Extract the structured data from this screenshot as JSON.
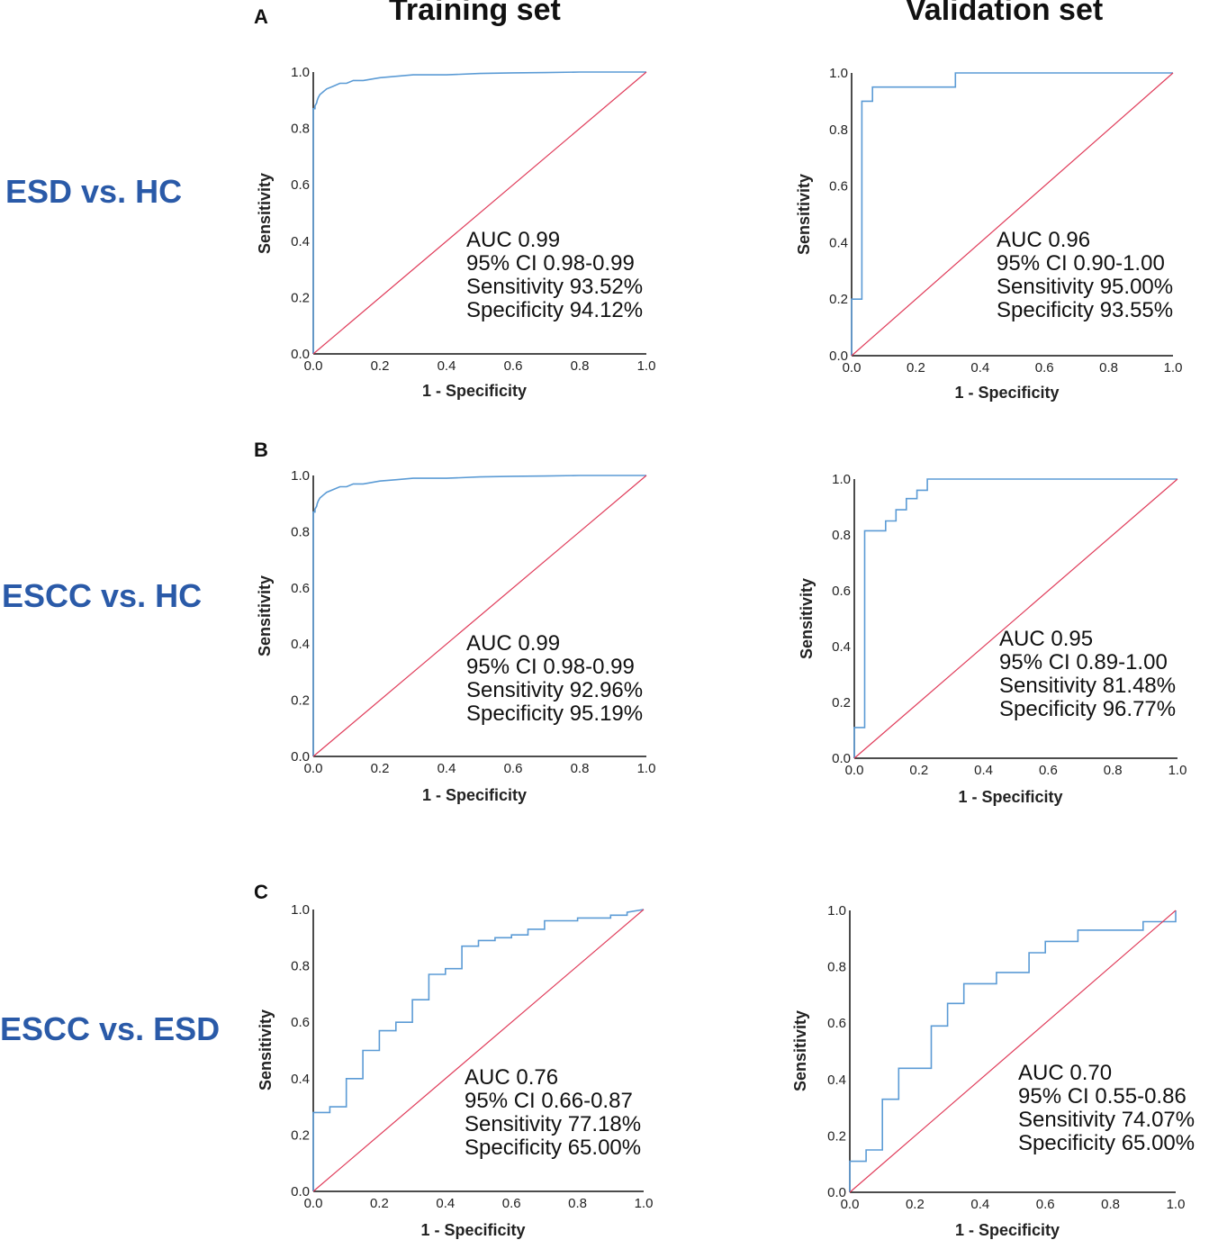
{
  "columns": {
    "left": "Training set",
    "right": "Validation set"
  },
  "rows": [
    {
      "letter": "A",
      "label": "ESD vs. HC"
    },
    {
      "letter": "B",
      "label": "ESCC vs. HC"
    },
    {
      "letter": "C",
      "label": "ESCC vs. ESD"
    }
  ],
  "colors": {
    "roc": "#5b9bd5",
    "reference": "#e03c5a",
    "label": "#2a5aa8"
  },
  "chart_data": [
    {
      "id": "A-train",
      "type": "line",
      "title": "Training set",
      "xlabel": "1 - Specificity",
      "ylabel": "Sensitivity",
      "xlim": [
        0,
        1
      ],
      "ylim": [
        0,
        1
      ],
      "ticks": [
        "0.0",
        "0.2",
        "0.4",
        "0.6",
        "0.8",
        "1.0"
      ],
      "series": [
        {
          "name": "ROC",
          "x": [
            0,
            0,
            0.005,
            0.005,
            0.01,
            0.012,
            0.015,
            0.02,
            0.03,
            0.04,
            0.06,
            0.08,
            0.1,
            0.12,
            0.15,
            0.2,
            0.25,
            0.3,
            0.4,
            0.5,
            0.6,
            0.7,
            0.8,
            1.0
          ],
          "y": [
            0,
            0.87,
            0.87,
            0.88,
            0.89,
            0.9,
            0.91,
            0.92,
            0.93,
            0.94,
            0.95,
            0.96,
            0.96,
            0.97,
            0.97,
            0.98,
            0.985,
            0.99,
            0.99,
            0.995,
            0.997,
            0.998,
            1.0,
            1.0
          ]
        },
        {
          "name": "Reference",
          "x": [
            0,
            1
          ],
          "y": [
            0,
            1
          ]
        }
      ],
      "stats": {
        "auc": "AUC 0.99",
        "ci": "95% CI 0.98-0.99",
        "sensitivity": "Sensitivity 93.52%",
        "specificity": "Specificity 94.12%"
      }
    },
    {
      "id": "A-val",
      "type": "line",
      "title": "Validation set",
      "xlabel": "1 - Specificity",
      "ylabel": "Sensitivity",
      "xlim": [
        0,
        1
      ],
      "ylim": [
        0,
        1
      ],
      "ticks": [
        "0.0",
        "0.2",
        "0.4",
        "0.6",
        "0.8",
        "1.0"
      ],
      "series": [
        {
          "name": "ROC",
          "x": [
            0,
            0,
            0.032,
            0.032,
            0.065,
            0.065,
            0.323,
            0.323,
            1.0
          ],
          "y": [
            0,
            0.2,
            0.2,
            0.9,
            0.9,
            0.95,
            0.95,
            1.0,
            1.0
          ]
        },
        {
          "name": "Reference",
          "x": [
            0,
            1
          ],
          "y": [
            0,
            1
          ]
        }
      ],
      "stats": {
        "auc": "AUC 0.96",
        "ci": "95% CI 0.90-1.00",
        "sensitivity": "Sensitivity 95.00%",
        "specificity": "Specificity 93.55%"
      }
    },
    {
      "id": "B-train",
      "type": "line",
      "title": "Training set",
      "xlabel": "1 - Specificity",
      "ylabel": "Sensitivity",
      "xlim": [
        0,
        1
      ],
      "ylim": [
        0,
        1
      ],
      "ticks": [
        "0.0",
        "0.2",
        "0.4",
        "0.6",
        "0.8",
        "1.0"
      ],
      "series": [
        {
          "name": "ROC",
          "x": [
            0,
            0,
            0.005,
            0.005,
            0.01,
            0.012,
            0.015,
            0.02,
            0.03,
            0.04,
            0.06,
            0.08,
            0.1,
            0.12,
            0.15,
            0.2,
            0.25,
            0.3,
            0.4,
            0.5,
            0.6,
            0.7,
            0.8,
            1.0
          ],
          "y": [
            0,
            0.87,
            0.87,
            0.88,
            0.89,
            0.9,
            0.91,
            0.92,
            0.93,
            0.94,
            0.95,
            0.96,
            0.96,
            0.97,
            0.97,
            0.98,
            0.985,
            0.99,
            0.99,
            0.995,
            0.997,
            0.998,
            1.0,
            1.0
          ]
        },
        {
          "name": "Reference",
          "x": [
            0,
            1
          ],
          "y": [
            0,
            1
          ]
        }
      ],
      "stats": {
        "auc": "AUC 0.99",
        "ci": "95% CI 0.98-0.99",
        "sensitivity": "Sensitivity 92.96%",
        "specificity": "Specificity 95.19%"
      }
    },
    {
      "id": "B-val",
      "type": "line",
      "title": "Validation set",
      "xlabel": "1 - Specificity",
      "ylabel": "Sensitivity",
      "xlim": [
        0,
        1
      ],
      "ylim": [
        0,
        1
      ],
      "ticks": [
        "0.0",
        "0.2",
        "0.4",
        "0.6",
        "0.8",
        "1.0"
      ],
      "series": [
        {
          "name": "ROC",
          "x": [
            0,
            0,
            0.032,
            0.032,
            0.097,
            0.097,
            0.129,
            0.129,
            0.161,
            0.161,
            0.194,
            0.194,
            0.226,
            0.226,
            1.0
          ],
          "y": [
            0,
            0.11,
            0.11,
            0.815,
            0.815,
            0.85,
            0.85,
            0.89,
            0.89,
            0.93,
            0.93,
            0.96,
            0.96,
            1.0,
            1.0
          ]
        },
        {
          "name": "Reference",
          "x": [
            0,
            1
          ],
          "y": [
            0,
            1
          ]
        }
      ],
      "stats": {
        "auc": "AUC 0.95",
        "ci": "95% CI 0.89-1.00",
        "sensitivity": "Sensitivity 81.48%",
        "specificity": "Specificity 96.77%"
      }
    },
    {
      "id": "C-train",
      "type": "line",
      "title": "Training set",
      "xlabel": "1 - Specificity",
      "ylabel": "Sensitivity",
      "xlim": [
        0,
        1
      ],
      "ylim": [
        0,
        1
      ],
      "ticks": [
        "0.0",
        "0.2",
        "0.4",
        "0.6",
        "0.8",
        "1.0"
      ],
      "series": [
        {
          "name": "ROC",
          "x": [
            0,
            0,
            0.05,
            0.05,
            0.1,
            0.1,
            0.15,
            0.15,
            0.2,
            0.2,
            0.25,
            0.25,
            0.3,
            0.3,
            0.35,
            0.35,
            0.4,
            0.4,
            0.45,
            0.45,
            0.5,
            0.5,
            0.55,
            0.55,
            0.6,
            0.6,
            0.65,
            0.65,
            0.7,
            0.7,
            0.8,
            0.8,
            0.9,
            0.9,
            0.95,
            0.95,
            1.0
          ],
          "y": [
            0,
            0.28,
            0.28,
            0.3,
            0.3,
            0.4,
            0.4,
            0.5,
            0.5,
            0.57,
            0.57,
            0.6,
            0.6,
            0.68,
            0.68,
            0.77,
            0.77,
            0.79,
            0.79,
            0.87,
            0.87,
            0.89,
            0.89,
            0.9,
            0.9,
            0.91,
            0.91,
            0.93,
            0.93,
            0.96,
            0.96,
            0.97,
            0.97,
            0.98,
            0.98,
            0.99,
            1.0
          ]
        },
        {
          "name": "Reference",
          "x": [
            0,
            1
          ],
          "y": [
            0,
            1
          ]
        }
      ],
      "stats": {
        "auc": "AUC 0.76",
        "ci": "95% CI 0.66-0.87",
        "sensitivity": "Sensitivity 77.18%",
        "specificity": "Specificity 65.00%"
      }
    },
    {
      "id": "C-val",
      "type": "line",
      "title": "Validation set",
      "xlabel": "1 - Specificity",
      "ylabel": "Sensitivity",
      "xlim": [
        0,
        1
      ],
      "ylim": [
        0,
        1
      ],
      "ticks": [
        "0.0",
        "0.2",
        "0.4",
        "0.6",
        "0.8",
        "1.0"
      ],
      "series": [
        {
          "name": "ROC",
          "x": [
            0,
            0,
            0.05,
            0.05,
            0.1,
            0.1,
            0.15,
            0.15,
            0.25,
            0.25,
            0.3,
            0.3,
            0.35,
            0.35,
            0.45,
            0.45,
            0.55,
            0.55,
            0.6,
            0.6,
            0.7,
            0.7,
            0.85,
            0.85,
            0.9,
            0.9,
            1.0,
            1.0
          ],
          "y": [
            0,
            0.11,
            0.11,
            0.15,
            0.15,
            0.33,
            0.33,
            0.44,
            0.44,
            0.59,
            0.59,
            0.67,
            0.67,
            0.74,
            0.74,
            0.78,
            0.78,
            0.85,
            0.85,
            0.89,
            0.89,
            0.93,
            0.93,
            0.93,
            0.93,
            0.96,
            0.96,
            1.0
          ]
        },
        {
          "name": "Reference",
          "x": [
            0,
            1
          ],
          "y": [
            0,
            1
          ]
        }
      ],
      "stats": {
        "auc": "AUC 0.70",
        "ci": "95% CI 0.55-0.86",
        "sensitivity": "Sensitivity 74.07%",
        "specificity": "Specificity 65.00%"
      }
    }
  ]
}
